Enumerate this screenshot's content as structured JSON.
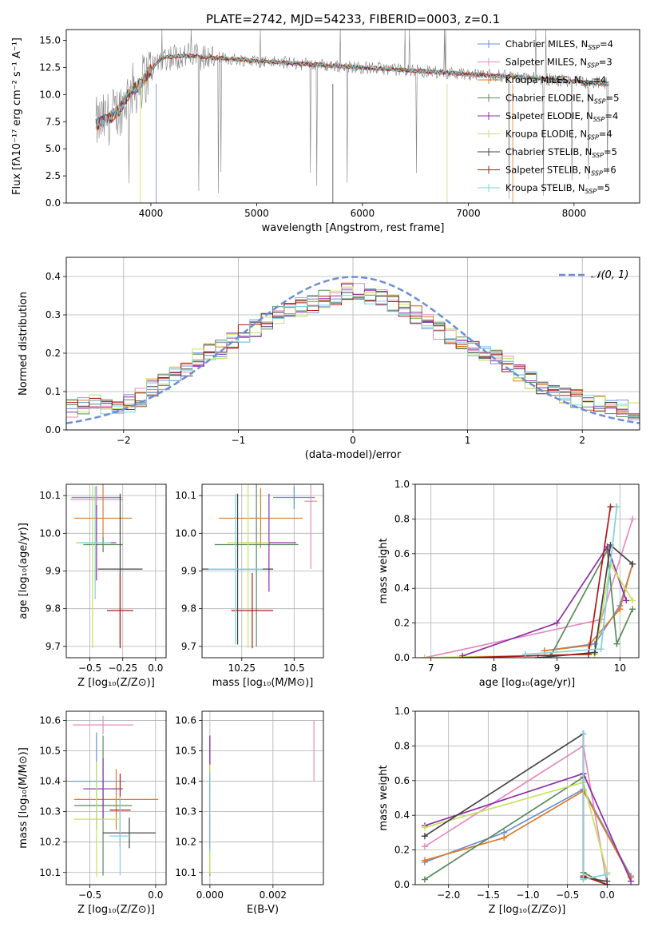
{
  "figure_title": "PLATE=2742, MJD=54233, FIBERID=0003, z=0.1",
  "colors": {
    "series": [
      "#6a8fd8",
      "#e58bbd",
      "#e07b25",
      "#5a8a5e",
      "#8e2fa6",
      "#c8e25e",
      "#444444",
      "#b01818",
      "#7fd3df"
    ],
    "observed": "#808080",
    "normal_curve": "#6a8fd8",
    "grid": "#b0b0b0"
  },
  "chart_data": [
    {
      "id": "spectrum",
      "type": "line",
      "xlabel": "wavelength [Angstrom, rest frame]",
      "ylabel": "Flux [fλ10⁻¹⁷ erg cm⁻² s⁻¹ A⁻¹]",
      "xlim": [
        3200,
        8620
      ],
      "ylim": [
        0,
        16
      ],
      "xticks": [
        4000,
        5000,
        6000,
        7000,
        8000
      ],
      "yticks": [
        0.0,
        2.5,
        5.0,
        7.5,
        10.0,
        12.5,
        15.0
      ],
      "legend_position": "top-right",
      "grid": false,
      "legend": [
        "Chabrier MILES, N_SSP=4",
        "Salpeter MILES, N_SSP=3",
        "Kroupa MILES, N_SSP=4",
        "Chabrier ELODIE, N_SSP=5",
        "Salpeter ELODIE, N_SSP=4",
        "Kroupa ELODIE, N_SSP=4",
        "Chabrier STELIB, N_SSP=5",
        "Salpeter STELIB, N_SSP=6",
        "Kroupa STELIB, N_SSP=5"
      ],
      "continuum": {
        "x": [
          3500,
          3600,
          3700,
          3800,
          3900,
          4000,
          4100,
          4300,
          4600,
          5000,
          5500,
          6000,
          6500,
          7000,
          7500,
          8000,
          8300
        ],
        "y": [
          7.3,
          7.8,
          8.6,
          10.2,
          11.0,
          12.3,
          13.4,
          13.6,
          13.4,
          13.1,
          12.8,
          12.5,
          12.2,
          11.9,
          11.6,
          11.2,
          11.0
        ]
      }
    },
    {
      "id": "residuals",
      "type": "step",
      "xlabel": "(data-model)/error",
      "ylabel": "Normed distribution",
      "xlim": [
        -2.5,
        2.5
      ],
      "ylim": [
        0,
        0.45
      ],
      "xticks": [
        -2,
        -1,
        0,
        1,
        2
      ],
      "yticks": [
        0.0,
        0.1,
        0.2,
        0.3,
        0.4
      ],
      "grid": true,
      "legend_position": "top-right",
      "curve_label": "𝒩(0, 1)",
      "bin_edges_range": [
        -2.5,
        2.5
      ],
      "n_bins": 50,
      "hist_approx": [
        0.055,
        0.06,
        0.07,
        0.065,
        0.06,
        0.07,
        0.085,
        0.11,
        0.125,
        0.145,
        0.165,
        0.19,
        0.2,
        0.21,
        0.23,
        0.25,
        0.265,
        0.28,
        0.3,
        0.31,
        0.32,
        0.33,
        0.34,
        0.35,
        0.36,
        0.36,
        0.35,
        0.345,
        0.33,
        0.32,
        0.3,
        0.28,
        0.26,
        0.245,
        0.225,
        0.21,
        0.2,
        0.185,
        0.17,
        0.15,
        0.13,
        0.115,
        0.1,
        0.09,
        0.08,
        0.07,
        0.065,
        0.06,
        0.055,
        0.05
      ]
    },
    {
      "id": "age_vs_Z",
      "type": "errorbar",
      "xlabel": "Z [log₁₀(Z/Z⊙)]",
      "ylabel": "age  [log₁₀(age/yr)]",
      "xlim": [
        -0.68,
        0.08
      ],
      "ylim": [
        9.67,
        10.13
      ],
      "xticks": [
        -0.5,
        -0.25,
        0.0
      ],
      "xticklabels": [
        "−0.5",
        "−0.25",
        "0.0"
      ],
      "yticks": [
        9.7,
        9.8,
        9.9,
        10.0,
        10.1
      ],
      "grid": true,
      "points": [
        {
          "x": -0.45,
          "y": 10.095,
          "xerr": 0.19,
          "yerr": 0.03
        },
        {
          "x": -0.45,
          "y": 10.09,
          "xerr": 0.2,
          "yerr": 0.03
        },
        {
          "x": -0.4,
          "y": 10.04,
          "xerr": 0.22,
          "yerr": 0.09
        },
        {
          "x": -0.4,
          "y": 9.97,
          "xerr": 0.15,
          "yerr": 0.02
        },
        {
          "x": -0.45,
          "y": 9.975,
          "xerr": 0.15,
          "yerr": 0.1
        },
        {
          "x": -0.48,
          "y": 9.975,
          "xerr": 0.13,
          "yerr": 0.28
        },
        {
          "x": -0.27,
          "y": 9.905,
          "xerr": 0.17,
          "yerr": 0.2
        },
        {
          "x": -0.27,
          "y": 9.795,
          "xerr": 0.1,
          "yerr": 0.1
        },
        {
          "x": -0.46,
          "y": 9.975,
          "xerr": 0.12,
          "yerr": 0.15
        }
      ]
    },
    {
      "id": "age_vs_mass",
      "type": "errorbar",
      "xlabel": "mass [log₁₀(M/M⊙)]",
      "ylabel": "",
      "xlim": [
        10.06,
        10.64
      ],
      "ylim": [
        9.67,
        10.13
      ],
      "xticks": [
        10.25,
        10.5
      ],
      "yticks": [
        9.7,
        9.8,
        9.9,
        10.0,
        10.1
      ],
      "grid": true,
      "points": [
        {
          "x": 10.5,
          "y": 10.095,
          "xerr": 0.1,
          "yerr": 0.03
        },
        {
          "x": 10.58,
          "y": 10.085,
          "xerr": 0.03,
          "yerr": 0.18
        },
        {
          "x": 10.34,
          "y": 10.04,
          "xerr": 0.2,
          "yerr": 0.08
        },
        {
          "x": 10.32,
          "y": 9.97,
          "xerr": 0.2,
          "yerr": 0.27
        },
        {
          "x": 10.38,
          "y": 9.975,
          "xerr": 0.13,
          "yerr": 0.13
        },
        {
          "x": 10.28,
          "y": 9.975,
          "xerr": 0.1,
          "yerr": 0.28
        },
        {
          "x": 10.23,
          "y": 9.905,
          "xerr": 0.17,
          "yerr": 0.2
        },
        {
          "x": 10.3,
          "y": 9.795,
          "xerr": 0.1,
          "yerr": 0.1
        },
        {
          "x": 10.22,
          "y": 9.905,
          "xerr": 0.13,
          "yerr": 0.2
        }
      ]
    },
    {
      "id": "mw_vs_age",
      "type": "line",
      "xlabel": "age  [log₁₀(age/yr)]",
      "ylabel": "mass weight",
      "xlim": [
        6.75,
        10.3
      ],
      "ylim": [
        0,
        1.0
      ],
      "xticks": [
        7,
        8,
        9,
        10
      ],
      "yticks": [
        0.0,
        0.2,
        0.4,
        0.6,
        0.8,
        1.0
      ],
      "grid": true,
      "series": [
        {
          "x": [
            8.8,
            9.6,
            10.0,
            10.2
          ],
          "y": [
            0.04,
            0.08,
            0.3,
            0.54
          ]
        },
        {
          "x": [
            6.9,
            9.7,
            10.2
          ],
          "y": [
            0.0,
            0.22,
            0.8
          ]
        },
        {
          "x": [
            8.8,
            9.5,
            10.0,
            10.2
          ],
          "y": [
            0.04,
            0.07,
            0.28,
            0.54
          ]
        },
        {
          "x": [
            8.9,
            9.8,
            9.95,
            10.2
          ],
          "y": [
            0.01,
            0.62,
            0.08,
            0.28
          ]
        },
        {
          "x": [
            7.5,
            9.0,
            9.8,
            10.1
          ],
          "y": [
            0.01,
            0.2,
            0.64,
            0.33
          ]
        },
        {
          "x": [
            6.9,
            9.6,
            9.85,
            10.2
          ],
          "y": [
            0.0,
            0.02,
            0.54,
            0.33
          ]
        },
        {
          "x": [
            8.7,
            9.6,
            9.85,
            10.2
          ],
          "y": [
            0.0,
            0.03,
            0.65,
            0.54
          ]
        },
        {
          "x": [
            7.5,
            9.5,
            9.85,
            9.95
          ],
          "y": [
            0.0,
            0.02,
            0.87,
            0.87
          ]
        },
        {
          "x": [
            8.5,
            9.7,
            9.95
          ],
          "y": [
            0.02,
            0.05,
            0.87
          ]
        }
      ]
    },
    {
      "id": "mass_vs_Z",
      "type": "errorbar",
      "xlabel": "Z [log₁₀(Z/Z⊙)]",
      "ylabel": "mass [log₁₀(M/M⊙)]",
      "xlim": [
        -0.68,
        0.08
      ],
      "ylim": [
        10.06,
        10.63
      ],
      "xticks": [
        -0.5,
        0.0
      ],
      "xticklabels": [
        "−0.5",
        "0.0"
      ],
      "yticks": [
        10.1,
        10.2,
        10.3,
        10.4,
        10.5,
        10.6
      ],
      "grid": true,
      "points": [
        {
          "x": -0.45,
          "y": 10.4,
          "xerr": 0.22,
          "yerr": 0.16
        },
        {
          "x": -0.4,
          "y": 10.585,
          "xerr": 0.23,
          "yerr": 0.03
        },
        {
          "x": -0.3,
          "y": 10.34,
          "xerr": 0.32,
          "yerr": 0.1
        },
        {
          "x": -0.4,
          "y": 10.32,
          "xerr": 0.22,
          "yerr": 0.23
        },
        {
          "x": -0.4,
          "y": 10.375,
          "xerr": 0.15,
          "yerr": 0.1
        },
        {
          "x": -0.45,
          "y": 10.275,
          "xerr": 0.17,
          "yerr": 0.19
        },
        {
          "x": -0.2,
          "y": 10.23,
          "xerr": 0.2,
          "yerr": 0.05
        },
        {
          "x": -0.27,
          "y": 10.305,
          "xerr": 0.08,
          "yerr": 0.12
        },
        {
          "x": -0.27,
          "y": 10.22,
          "xerr": 0.08,
          "yerr": 0.13
        }
      ]
    },
    {
      "id": "mass_vs_EBV",
      "type": "errorbar",
      "xlabel": "E(B-V)",
      "ylabel": "",
      "xlim": [
        -0.00025,
        0.0036
      ],
      "ylim": [
        10.06,
        10.63
      ],
      "xticks": [
        0.0,
        0.002
      ],
      "xticklabels": [
        "0.000",
        "0.002"
      ],
      "yticks": [
        10.1,
        10.2,
        10.3,
        10.4,
        10.5,
        10.6
      ],
      "grid": true,
      "points": [
        {
          "x": 0.0,
          "y": 10.4,
          "xerr": 0,
          "yerr": 0.15
        },
        {
          "x": 0.0033,
          "y": 10.5,
          "xerr": 0,
          "yerr": 0.1
        },
        {
          "x": 0.0,
          "y": 10.34,
          "xerr": 0,
          "yerr": 0.1
        },
        {
          "x": 0.0,
          "y": 10.32,
          "xerr": 0,
          "yerr": 0.23
        },
        {
          "x": 0.0,
          "y": 10.45,
          "xerr": 0,
          "yerr": 0.1
        },
        {
          "x": 0.0,
          "y": 10.275,
          "xerr": 0,
          "yerr": 0.18
        },
        {
          "x": 0.0,
          "y": 10.23,
          "xerr": 0,
          "yerr": 0.05
        },
        {
          "x": 0.0,
          "y": 10.305,
          "xerr": 0,
          "yerr": 0.12
        },
        {
          "x": 0.0,
          "y": 10.3,
          "xerr": 0,
          "yerr": 0.13
        }
      ]
    },
    {
      "id": "mw_vs_Z",
      "type": "line",
      "xlabel": "Z [log₁₀(Z/Z⊙)]",
      "ylabel": "mass weight",
      "xlim": [
        -2.42,
        0.4
      ],
      "ylim": [
        0,
        1.0
      ],
      "xticks": [
        -2.0,
        -1.5,
        -1.0,
        -0.5,
        0.0
      ],
      "xticklabels": [
        "−2.0",
        "−1.5",
        "−1.0",
        "−0.5",
        "0.0"
      ],
      "yticks": [
        0.0,
        0.2,
        0.4,
        0.6,
        0.8,
        1.0
      ],
      "grid": true,
      "series": [
        {
          "x": [
            -2.3,
            -1.3,
            -0.3,
            0.3
          ],
          "y": [
            0.13,
            0.3,
            0.55,
            0.05
          ]
        },
        {
          "x": [
            -2.3,
            -0.3,
            0.0
          ],
          "y": [
            0.22,
            0.8,
            0.0
          ]
        },
        {
          "x": [
            -2.3,
            -1.3,
            -0.3,
            0.3
          ],
          "y": [
            0.14,
            0.27,
            0.54,
            0.04
          ]
        },
        {
          "x": [
            -2.3,
            -0.3,
            -0.3,
            0.0
          ],
          "y": [
            0.03,
            0.62,
            0.07,
            0.0
          ]
        },
        {
          "x": [
            -2.3,
            -0.3,
            0.3
          ],
          "y": [
            0.34,
            0.64,
            0.02
          ]
        },
        {
          "x": [
            -2.3,
            -0.3,
            0.0
          ],
          "y": [
            0.33,
            0.59,
            0.07
          ]
        },
        {
          "x": [
            -2.3,
            -0.3,
            -0.3,
            0.0
          ],
          "y": [
            0.28,
            0.87,
            0.04,
            0.02
          ]
        },
        {
          "x": [
            -0.3,
            -0.3,
            0.0
          ],
          "y": [
            0.87,
            0.05,
            0.0
          ]
        },
        {
          "x": [
            -0.3,
            -0.3,
            0.0
          ],
          "y": [
            0.87,
            0.03,
            0.06
          ]
        }
      ]
    }
  ]
}
